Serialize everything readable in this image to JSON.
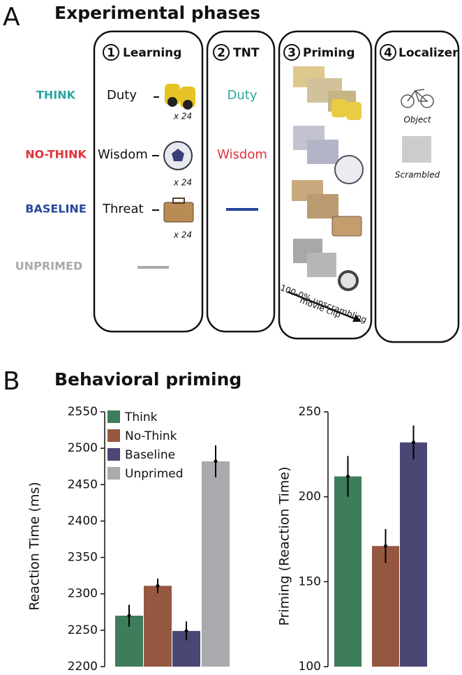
{
  "panel_a": {
    "letter": "A",
    "title": "Experimental phases",
    "phases": [
      {
        "number": "1",
        "label": "Learning"
      },
      {
        "number": "2",
        "label": "TNT"
      },
      {
        "number": "3",
        "label": "Priming"
      },
      {
        "number": "4",
        "label": "Localizer"
      }
    ],
    "conditions": [
      "THINK",
      "NO-THINK",
      "BASELINE",
      "UNPRIMED"
    ],
    "learning_words": [
      "Duty",
      "Wisdom",
      "Threat"
    ],
    "repetitions": [
      "x 24",
      "x 24",
      "x 24"
    ],
    "tnt_words": [
      "Duty",
      "Wisdom"
    ],
    "priming_note": [
      "100-0% unscrambling",
      "movie clip"
    ],
    "localizer_labels": [
      "Object",
      "Scrambled"
    ]
  },
  "panel_b": {
    "letter": "B",
    "title": "Behavioral priming"
  },
  "chart_data": [
    {
      "type": "bar",
      "y_label": "Reaction Time (ms)",
      "categories": [
        null
      ],
      "series": [
        {
          "name": "Think",
          "color": "#3e7d5b",
          "values": [
            2270
          ],
          "errors": [
            15
          ]
        },
        {
          "name": "No-Think",
          "color": "#955740",
          "values": [
            2311
          ],
          "errors": [
            10
          ]
        },
        {
          "name": "Baseline",
          "color": "#4a4774",
          "values": [
            2249
          ],
          "errors": [
            13
          ]
        },
        {
          "name": "Unprimed",
          "color": "#a8aaad",
          "values": [
            2482
          ],
          "errors": [
            22
          ]
        }
      ],
      "ylim": [
        2200,
        2550
      ],
      "yticks": [
        2200,
        2250,
        2300,
        2350,
        2400,
        2450,
        2500,
        2550
      ]
    },
    {
      "type": "bar",
      "y_label": "Priming (Reaction Time)",
      "categories": [
        null,
        null,
        null
      ],
      "values": [
        212,
        171,
        232
      ],
      "errors": [
        12,
        10,
        10
      ],
      "colors": [
        "#3e7d5b",
        "#955740",
        "#4a4774"
      ],
      "ylim": [
        100,
        250
      ],
      "yticks": [
        100,
        150,
        200,
        250
      ]
    }
  ]
}
